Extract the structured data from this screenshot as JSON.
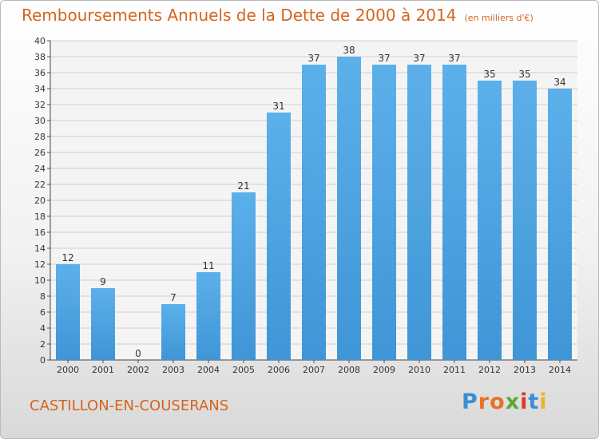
{
  "title": "Remboursements Annuels de la Dette de 2000 à 2014",
  "unit": "(en milliers d'€)",
  "commune": "CASTILLON-EN-COUSERANS",
  "logo_text": "Proxiti",
  "logo_colors": [
    "#3a8fd6",
    "#e8702a",
    "#e8702a",
    "#5aa832",
    "#d93b2b",
    "#3a8fd6",
    "#e8b52a"
  ],
  "colors": {
    "bar": "#3f95d6",
    "bar_light": "#5cb0ea",
    "title": "#d4651f",
    "grid": "#d0d0d0"
  },
  "chart_data": {
    "type": "bar",
    "title": "Remboursements Annuels de la Dette de 2000 à 2014",
    "categories": [
      "2000",
      "2001",
      "2002",
      "2003",
      "2004",
      "2005",
      "2006",
      "2007",
      "2008",
      "2009",
      "2010",
      "2011",
      "2012",
      "2013",
      "2014"
    ],
    "values": [
      12,
      9,
      0,
      7,
      11,
      21,
      31,
      37,
      38,
      37,
      37,
      37,
      35,
      35,
      34
    ],
    "ylim": [
      0,
      40
    ],
    "yticks": [
      0,
      2,
      4,
      6,
      8,
      10,
      12,
      14,
      16,
      18,
      20,
      22,
      24,
      26,
      28,
      30,
      32,
      34,
      36,
      38,
      40
    ],
    "grid": true,
    "legend": "none"
  }
}
